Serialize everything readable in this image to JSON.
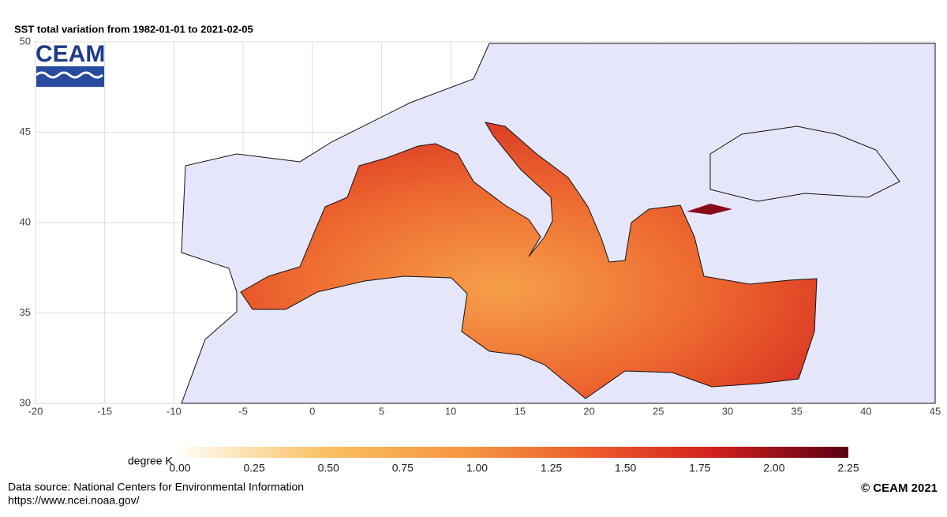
{
  "title": "SST total variation from  1982-01-01 to 2021-02-05",
  "logo": "CEAM",
  "map": {
    "xlim": [
      -20,
      45
    ],
    "ylim": [
      30,
      50
    ],
    "xticks": [
      -20,
      -15,
      -10,
      -5,
      0,
      5,
      10,
      15,
      20,
      25,
      30,
      35,
      40,
      45
    ],
    "yticks": [
      30,
      35,
      40,
      45,
      50
    ],
    "grid": true
  },
  "colorbar": {
    "label": "degree K",
    "lim": [
      0,
      2.25
    ],
    "ticks": [
      {
        "value": 0,
        "label": "0.00"
      },
      0.25,
      {
        "value": 0.5,
        "label": "0.50"
      },
      0.75,
      {
        "value": 1,
        "label": "1.00"
      },
      1.25,
      {
        "value": 1.5,
        "label": "1.50"
      },
      1.75,
      {
        "value": 2,
        "label": "2.00"
      },
      2.25
    ]
  },
  "footer": {
    "source": "Data source: National Centers for Environmental Information",
    "url": "https://www.ncei.noaa.gov/",
    "copyright": "© CEAM 2021"
  }
}
